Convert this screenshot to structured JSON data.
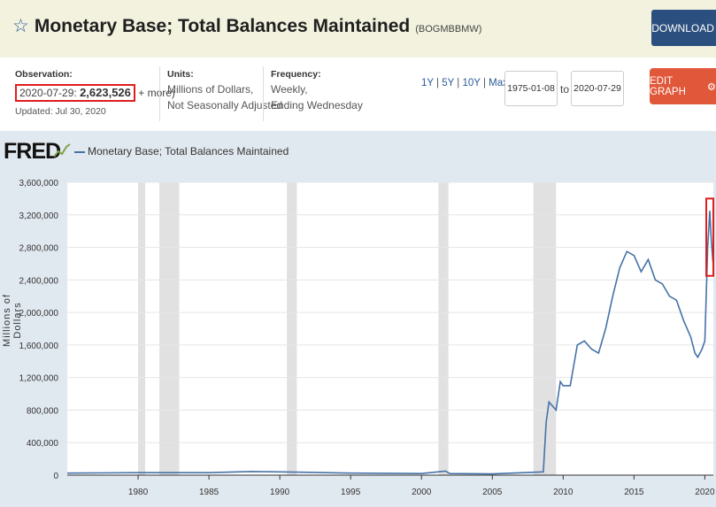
{
  "header": {
    "title": "Monetary Base; Total Balances Maintained",
    "series_id": "(BOGMBBMW)",
    "download_label": "DOWNLOAD"
  },
  "meta": {
    "observation_label": "Observation:",
    "observation_date": "2020-07-29:",
    "observation_value": "2,623,526",
    "more_text": "+ more)",
    "updated": "Updated: Jul 30, 2020",
    "units_label": "Units:",
    "units_line1": "Millions of Dollars,",
    "units_line2": "Not Seasonally Adjusted",
    "frequency_label": "Frequency:",
    "frequency_line1": "Weekly,",
    "frequency_line2": "Ending Wednesday"
  },
  "controls": {
    "range_1y": "1Y",
    "range_5y": "5Y",
    "range_10y": "10Y",
    "range_max": "Max",
    "start_date": "1975-01-08",
    "to_label": "to",
    "end_date": "2020-07-29",
    "edit_label": "EDIT GRAPH"
  },
  "brand": {
    "logo": "FRED"
  },
  "colors": {
    "line": "#4572a7",
    "recession": "#e1e1e1",
    "highlight": "#e01d1d",
    "download_bg": "#2b4f7e",
    "edit_bg": "#e0573a"
  },
  "chart_data": {
    "type": "line",
    "title": "",
    "legend": "Monetary Base; Total Balances Maintained",
    "ylabel": "Millions of Dollars",
    "xlim": [
      1975.0,
      2020.6
    ],
    "ylim": [
      0,
      3600000
    ],
    "y_ticks": [
      0,
      400000,
      800000,
      1200000,
      1600000,
      2000000,
      2400000,
      2800000,
      3200000,
      3600000
    ],
    "y_tick_labels": [
      "0",
      "400,000",
      "800,000",
      "1,200,000",
      "1,600,000",
      "2,000,000",
      "2,400,000",
      "2,800,000",
      "3,200,000",
      "3,600,000"
    ],
    "x_ticks": [
      1980,
      1985,
      1990,
      1995,
      2000,
      2005,
      2010,
      2015,
      2020
    ],
    "x_tick_labels": [
      "1980",
      "1985",
      "1990",
      "1995",
      "2000",
      "2005",
      "2010",
      "2015",
      "2020"
    ],
    "recessions": [
      [
        1980.0,
        1980.5
      ],
      [
        1981.5,
        1982.9
      ],
      [
        1990.5,
        1991.2
      ],
      [
        2001.2,
        2001.9
      ],
      [
        2007.9,
        2009.5
      ]
    ],
    "series": [
      {
        "name": "Monetary Base; Total Balances Maintained",
        "x": [
          1975.0,
          1980.0,
          1985.0,
          1988.0,
          1990.0,
          1992.0,
          1995.0,
          2000.0,
          2001.7,
          2002.0,
          2005.0,
          2008.6,
          2008.8,
          2009.0,
          2009.5,
          2009.8,
          2010.0,
          2010.5,
          2011.0,
          2011.5,
          2012.0,
          2012.5,
          2013.0,
          2013.5,
          2014.0,
          2014.5,
          2015.0,
          2015.5,
          2016.0,
          2016.5,
          2017.0,
          2017.5,
          2018.0,
          2018.5,
          2019.0,
          2019.3,
          2019.5,
          2019.8,
          2020.0,
          2020.2,
          2020.35,
          2020.45,
          2020.57
        ],
        "y": [
          25000,
          30000,
          30000,
          45000,
          40000,
          35000,
          25000,
          20000,
          50000,
          20000,
          15000,
          40000,
          650000,
          900000,
          800000,
          1150000,
          1100000,
          1100000,
          1600000,
          1650000,
          1550000,
          1500000,
          1800000,
          2200000,
          2550000,
          2750000,
          2700000,
          2500000,
          2650000,
          2400000,
          2350000,
          2200000,
          2150000,
          1900000,
          1700000,
          1500000,
          1450000,
          1550000,
          1650000,
          2800000,
          3250000,
          2900000,
          2623526
        ]
      }
    ]
  }
}
